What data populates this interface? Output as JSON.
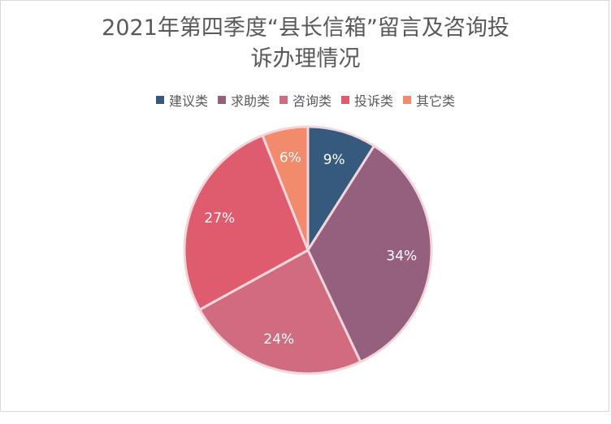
{
  "chart_data": {
    "type": "pie",
    "title_line1": "2021年第四季度“县长信箱”留言及咨询投",
    "title_line2": "诉办理情况",
    "categories": [
      "建议类",
      "求助类",
      "咨询类",
      "投诉类",
      "其它类"
    ],
    "values": [
      9,
      34,
      24,
      27,
      6
    ],
    "labels": [
      "9%",
      "34%",
      "24%",
      "27%",
      "6%"
    ],
    "colors": [
      "#355a7e",
      "#95607e",
      "#d16c80",
      "#de5c6e",
      "#f28b6c"
    ],
    "legend_position": "top"
  }
}
